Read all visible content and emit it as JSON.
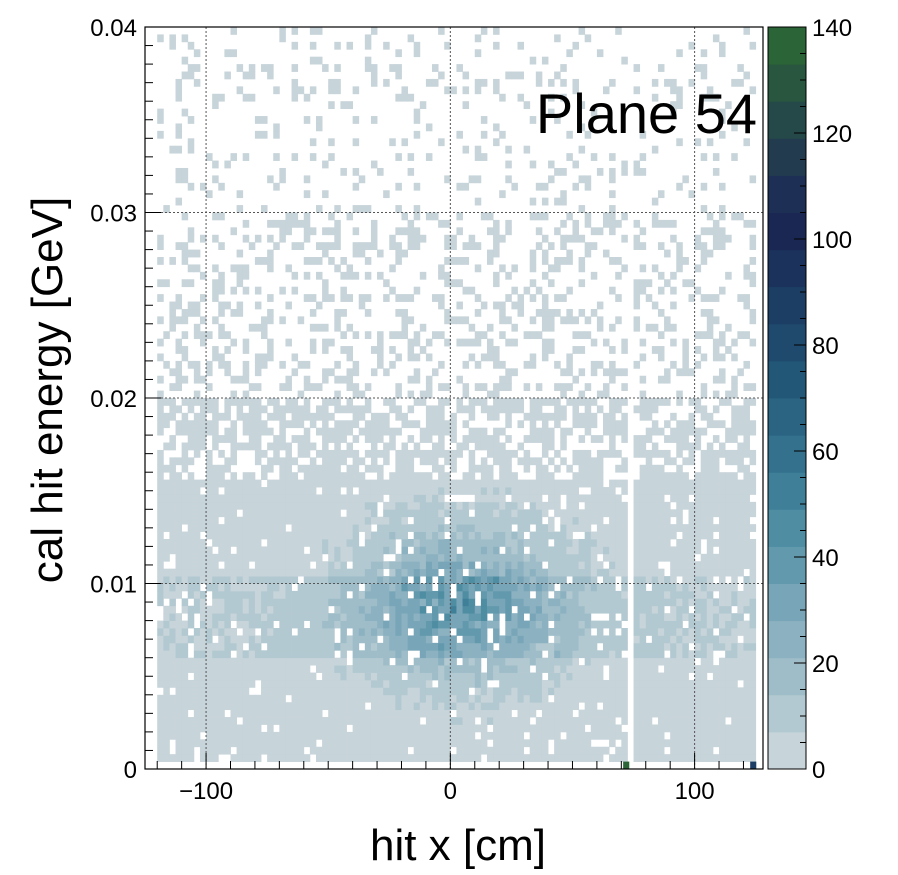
{
  "chart_data": {
    "type": "heatmap",
    "title": "",
    "xlabel": "hit x [cm]",
    "ylabel": "cal hit energy [GeV]",
    "annotation": "Plane 54",
    "xlim": [
      -125,
      128
    ],
    "ylim": [
      0,
      0.04
    ],
    "x_ticks": [
      {
        "value": -100,
        "label": "−100"
      },
      {
        "value": 0,
        "label": "0"
      },
      {
        "value": 100,
        "label": "100"
      }
    ],
    "y_ticks": [
      {
        "value": 0,
        "label": "0"
      },
      {
        "value": 0.01,
        "label": "0.01"
      },
      {
        "value": 0.02,
        "label": "0.02"
      },
      {
        "value": 0.03,
        "label": "0.03"
      },
      {
        "value": 0.04,
        "label": "0.04"
      }
    ],
    "grid": true,
    "colorbar": {
      "min": 0,
      "max": 140,
      "levels": 20,
      "ticks": [
        {
          "value": 0,
          "label": "0"
        },
        {
          "value": 20,
          "label": "20"
        },
        {
          "value": 40,
          "label": "40"
        },
        {
          "value": 60,
          "label": "60"
        },
        {
          "value": 80,
          "label": "80"
        },
        {
          "value": 100,
          "label": "100"
        },
        {
          "value": 120,
          "label": "120"
        },
        {
          "value": 140,
          "label": "140"
        }
      ],
      "palette": [
        "#c7d4da",
        "#b3c9d1",
        "#9fbdc9",
        "#8cb2c1",
        "#78a6b8",
        "#6399ad",
        "#4f8da3",
        "#3f7f98",
        "#33718d",
        "#2a6482",
        "#235778",
        "#1f4a6e",
        "#1c3e65",
        "#1b325c",
        "#1b2753",
        "#1e2f55",
        "#223b4f",
        "#254848",
        "#28563f",
        "#2b6436",
        "#2f7a27"
      ]
    },
    "description_of_distribution": "Sparse counts above 0.02 GeV; dense band between ~0.001 and ~0.02 GeV across x from -120 to 122 cm; peak near x=0..20 cm, E~0.008-0.01 GeV; gap (empty column) near x~72-76 cm; isolated high bins at x~72 cm (E~0) and x~122 cm (E~0).",
    "peak_region": {
      "x_center": 5,
      "y_center": 0.009,
      "max_count_estimate": 40
    },
    "hot_bins": [
      {
        "x": 72,
        "y": 0.0001,
        "count": 138
      },
      {
        "x": 124,
        "y": 0.0001,
        "count": 90
      }
    ],
    "empty_column_x": [
      72,
      76
    ]
  }
}
